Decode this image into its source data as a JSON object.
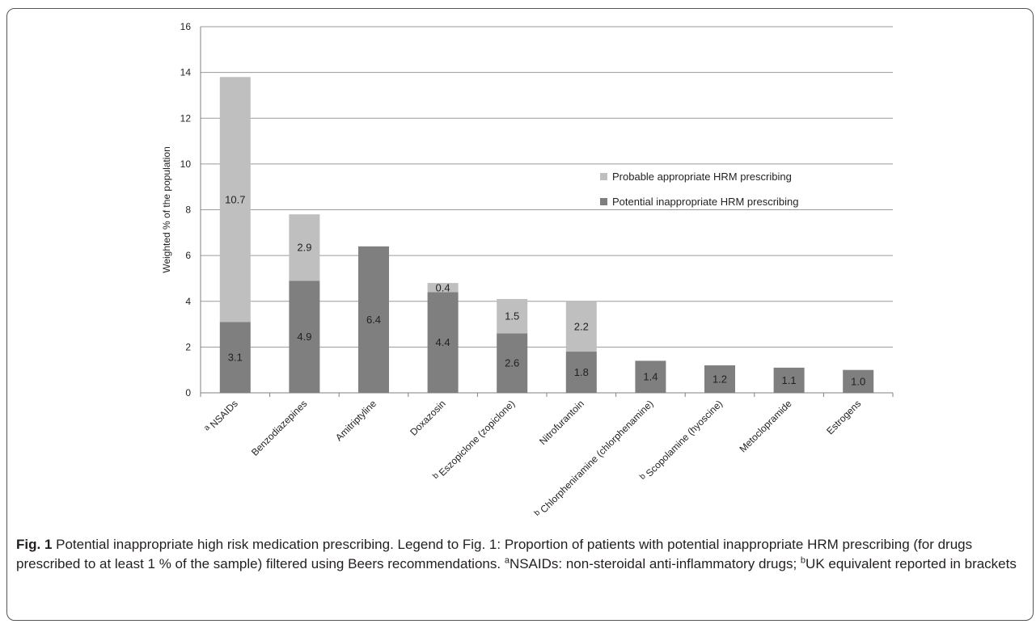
{
  "chart_data": {
    "type": "bar",
    "stacked": true,
    "categories": [
      {
        "prefix": "a",
        "name": "NSAIDs"
      },
      {
        "prefix": "",
        "name": "Benzodiazepines"
      },
      {
        "prefix": "",
        "name": "Amitriptyline"
      },
      {
        "prefix": "",
        "name": "Doxazosin"
      },
      {
        "prefix": "b",
        "name": "Eszopiclone (zopiclone)"
      },
      {
        "prefix": "",
        "name": "Nitrofurantoin"
      },
      {
        "prefix": "b",
        "name": "Chlorpheniramine  (chlorphenamine)"
      },
      {
        "prefix": "b",
        "name": "Scopolamine (hyoscine)"
      },
      {
        "prefix": "",
        "name": "Metoclopramide"
      },
      {
        "prefix": "",
        "name": "Estrogens"
      }
    ],
    "series": [
      {
        "name": "Potential inappropriate HRM prescribing",
        "color": "#7f7f7f",
        "values": [
          3.1,
          4.9,
          6.4,
          4.4,
          2.6,
          1.8,
          1.4,
          1.2,
          1.1,
          1.0
        ],
        "labels": [
          "3.1",
          "4.9",
          "6.4",
          "4.4",
          "2.6",
          "1.8",
          "1.4",
          "1.2",
          "1.1",
          "1.0"
        ]
      },
      {
        "name": "Probable appropriate HRM prescribing",
        "color": "#bfbfbf",
        "values": [
          10.7,
          2.9,
          0,
          0.4,
          1.5,
          2.2,
          0,
          0,
          0,
          0
        ],
        "labels": [
          "10.7",
          "2.9",
          "",
          "0.4",
          "1.5",
          "2.2",
          "",
          "",
          "",
          ""
        ]
      }
    ],
    "ylabel": "Weighted % of the population",
    "ylim": [
      0,
      16
    ],
    "yticks": [
      "0",
      "2",
      "4",
      "6",
      "8",
      "10",
      "12",
      "14",
      "16"
    ],
    "grid": true,
    "legend_position": "right"
  },
  "caption": {
    "fig_label": "Fig. 1",
    "text_1": " Potential inappropriate high risk medication prescribing. Legend to Fig. 1: Proportion of patients with potential inappropriate HRM prescribing (for drugs prescribed to at least 1 % of the sample) filtered using Beers recommendations. ",
    "sup_a": "a",
    "text_2": "NSAIDs: non-steroidal anti-inflammatory drugs; ",
    "sup_b": "b",
    "text_3": "UK equivalent reported in brackets"
  }
}
